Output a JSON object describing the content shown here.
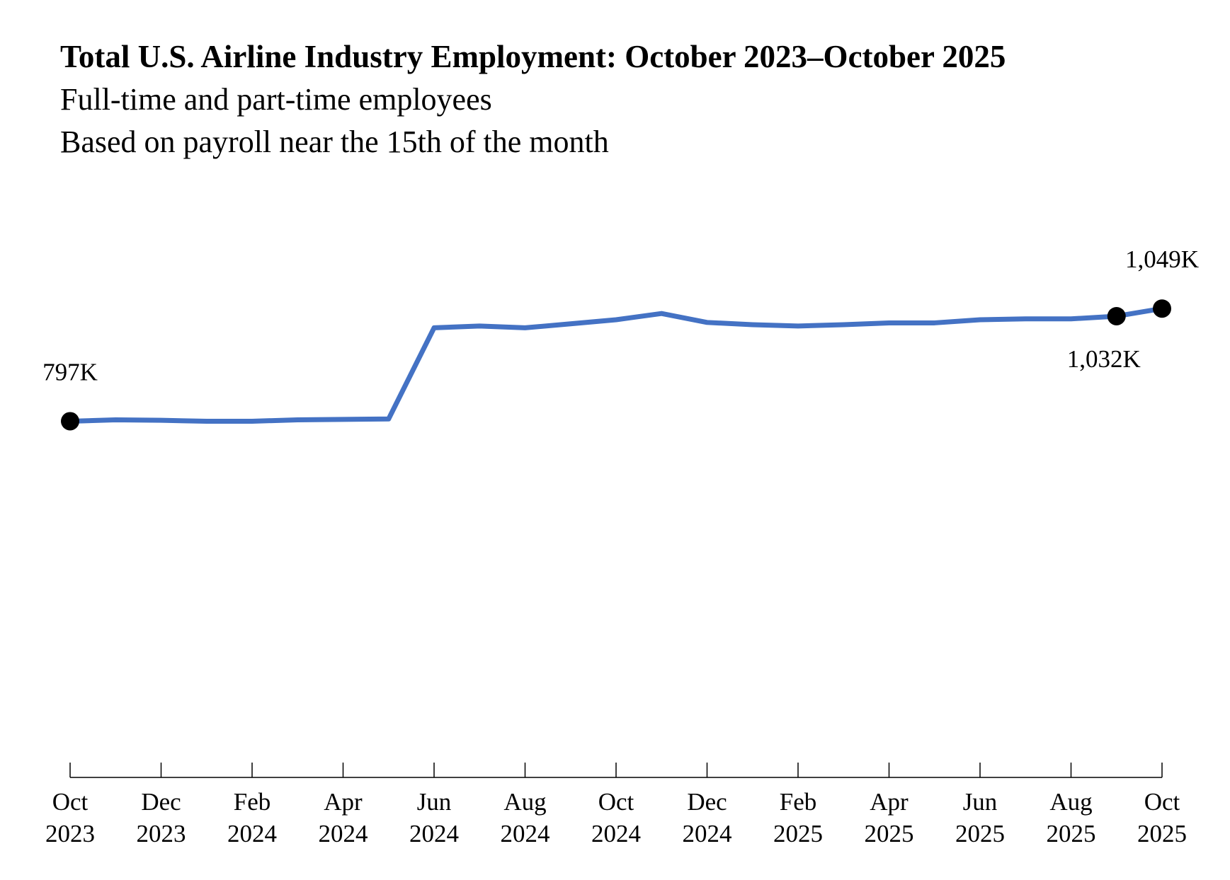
{
  "chart_data": {
    "type": "line",
    "title": "Total U.S. Airline Industry Employment: October 2023–October 2025",
    "subtitle": [
      "Full-time and part-time employees",
      "Based on payroll near the 15th of the month"
    ],
    "xlabel": "",
    "ylabel": "",
    "ylim": [
      0,
      1100
    ],
    "grid": false,
    "line_color": "#4472C4",
    "x": [
      "Oct 2023",
      "Nov 2023",
      "Dec 2023",
      "Jan 2024",
      "Feb 2024",
      "Mar 2024",
      "Apr 2024",
      "May 2024",
      "Jun 2024",
      "Jul 2024",
      "Aug 2024",
      "Sep 2024",
      "Oct 2024",
      "Nov 2024",
      "Dec 2024",
      "Jan 2025",
      "Feb 2025",
      "Mar 2025",
      "Apr 2025",
      "May 2025",
      "Jun 2025",
      "Jul 2025",
      "Aug 2025",
      "Sep 2025",
      "Oct 2025"
    ],
    "values": [
      797,
      800,
      799,
      797,
      797,
      800,
      801,
      802,
      1006,
      1010,
      1006,
      1015,
      1024,
      1038,
      1018,
      1013,
      1010,
      1013,
      1017,
      1017,
      1024,
      1026,
      1026,
      1032,
      1049
    ],
    "x_ticks": [
      {
        "month": "Oct",
        "year": "2023"
      },
      {
        "month": "Dec",
        "year": "2023"
      },
      {
        "month": "Feb",
        "year": "2024"
      },
      {
        "month": "Apr",
        "year": "2024"
      },
      {
        "month": "Jun",
        "year": "2024"
      },
      {
        "month": "Aug",
        "year": "2024"
      },
      {
        "month": "Oct",
        "year": "2024"
      },
      {
        "month": "Dec",
        "year": "2024"
      },
      {
        "month": "Feb",
        "year": "2025"
      },
      {
        "month": "Apr",
        "year": "2025"
      },
      {
        "month": "Jun",
        "year": "2025"
      },
      {
        "month": "Aug",
        "year": "2025"
      },
      {
        "month": "Oct",
        "year": "2025"
      }
    ],
    "annotations": [
      {
        "index": 0,
        "label": "797K",
        "position": "above"
      },
      {
        "index": 23,
        "label": "1,032K",
        "position": "below"
      },
      {
        "index": 24,
        "label": "1,049K",
        "position": "above"
      }
    ]
  }
}
